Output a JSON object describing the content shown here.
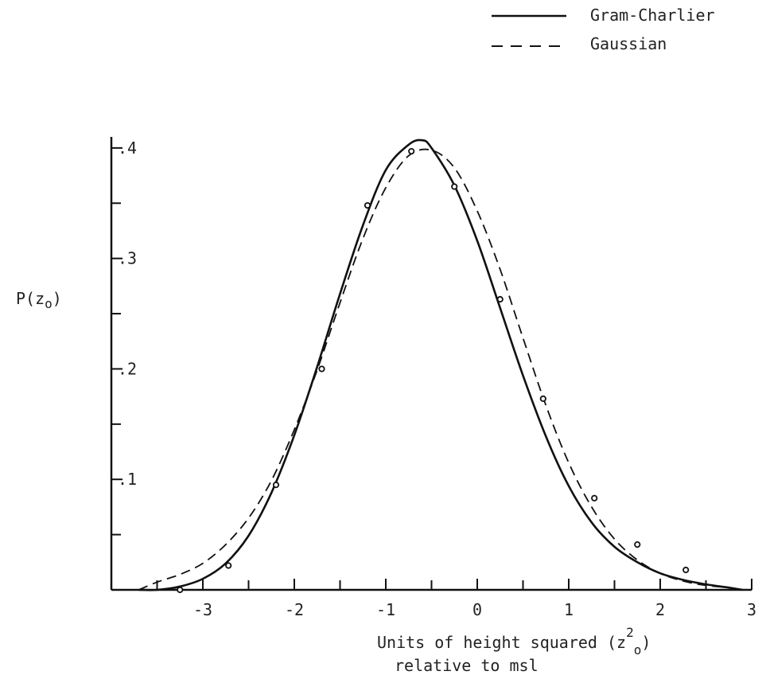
{
  "chart_data": {
    "type": "line",
    "title": "",
    "ylabel": {
      "main": "P(z",
      "sub": "o",
      "close": ")"
    },
    "xlabel": {
      "line1_prefix": "Units of height squared (z",
      "line1_sup": "2",
      "line1_sub": "o",
      "line1_suffix": ")",
      "line2": "relative to msl"
    },
    "xlim": [
      -4.0,
      3.0
    ],
    "ylim": [
      0,
      0.41
    ],
    "xticks": [
      -3,
      -2,
      -1,
      0,
      1,
      2,
      3
    ],
    "xtick_labels": [
      "-3",
      "-2",
      "-1",
      "0",
      "1",
      "2",
      "3"
    ],
    "yticks": [
      0.1,
      0.2,
      0.3,
      0.4
    ],
    "ytick_labels": [
      ".1",
      ".2",
      ".3",
      ".4"
    ],
    "grid": false,
    "legend_position": "top-right",
    "legend": [
      {
        "label": "Gram-Charlier",
        "style": "solid"
      },
      {
        "label": "Gaussian",
        "style": "dashed"
      }
    ],
    "series": [
      {
        "name": "Gram-Charlier",
        "style": "solid",
        "x": [
          -3.7,
          -3.5,
          -3.25,
          -3.0,
          -2.75,
          -2.5,
          -2.25,
          -2.0,
          -1.75,
          -1.5,
          -1.25,
          -1.0,
          -0.75,
          -0.6,
          -0.5,
          -0.25,
          0.0,
          0.25,
          0.5,
          0.75,
          1.0,
          1.25,
          1.5,
          1.75,
          2.0,
          2.25,
          2.5,
          2.75,
          2.9
        ],
        "y": [
          0.0,
          0.0,
          0.003,
          0.01,
          0.024,
          0.049,
          0.088,
          0.14,
          0.202,
          0.268,
          0.33,
          0.38,
          0.403,
          0.407,
          0.4,
          0.366,
          0.316,
          0.255,
          0.194,
          0.139,
          0.094,
          0.061,
          0.039,
          0.025,
          0.015,
          0.009,
          0.005,
          0.002,
          0.0
        ]
      },
      {
        "name": "Gaussian",
        "style": "dashed",
        "x": [
          -3.7,
          -3.5,
          -3.25,
          -3.0,
          -2.75,
          -2.5,
          -2.25,
          -2.0,
          -1.75,
          -1.5,
          -1.25,
          -1.0,
          -0.75,
          -0.5,
          -0.25,
          0.0,
          0.25,
          0.5,
          0.75,
          1.0,
          1.25,
          1.5,
          1.75,
          2.0,
          2.25,
          2.5,
          2.75,
          2.9
        ],
        "y": [
          0.0,
          0.007,
          0.014,
          0.024,
          0.041,
          0.065,
          0.099,
          0.145,
          0.199,
          0.26,
          0.318,
          0.364,
          0.393,
          0.398,
          0.382,
          0.343,
          0.29,
          0.228,
          0.167,
          0.115,
          0.075,
          0.046,
          0.027,
          0.015,
          0.008,
          0.004,
          0.002,
          0.0
        ]
      },
      {
        "name": "observed",
        "style": "points",
        "x": [
          -3.25,
          -2.72,
          -2.2,
          -1.7,
          -1.2,
          -0.72,
          -0.25,
          0.25,
          0.72,
          1.28,
          1.75,
          2.28
        ],
        "y": [
          0.0,
          0.022,
          0.095,
          0.2,
          0.348,
          0.397,
          0.365,
          0.263,
          0.173,
          0.083,
          0.041,
          0.018
        ]
      }
    ]
  }
}
